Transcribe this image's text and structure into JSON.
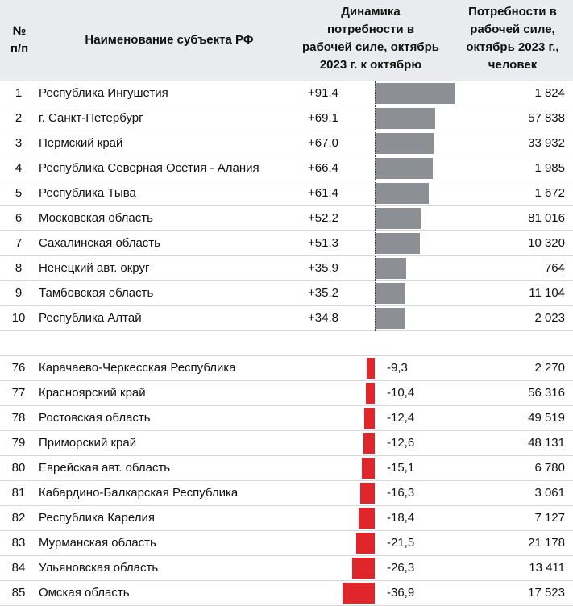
{
  "header": {
    "col_num": [
      "№",
      "п/п"
    ],
    "col_name": "Наименование субъекта РФ",
    "col_dynamics": [
      "Динамика",
      "потребности в",
      "рабочей силе, октябрь",
      "2023 г. к октябрю"
    ],
    "col_need": [
      "Потребности в",
      "рабочей силе,",
      "октябрь 2023 г.,",
      "человек"
    ]
  },
  "colors": {
    "positive_bar": "#8c8f93",
    "negative_bar": "#e0262b",
    "header_bg": "#e9ebef"
  },
  "chart_data": {
    "type": "bar",
    "orientation": "horizontal",
    "top": [
      {
        "rank": "1",
        "name": "Республика Ингушетия",
        "label": "+91.4",
        "value": 91.4,
        "need": "1 824"
      },
      {
        "rank": "2",
        "name": "г. Санкт-Петербург",
        "label": "+69.1",
        "value": 69.1,
        "need": "57 838"
      },
      {
        "rank": "3",
        "name": "Пермский край",
        "label": "+67.0",
        "value": 67.0,
        "need": "33 932"
      },
      {
        "rank": "4",
        "name": "Республика Северная Осетия - Алания",
        "label": "+66.4",
        "value": 66.4,
        "need": "1 985"
      },
      {
        "rank": "5",
        "name": "Республика Тыва",
        "label": "+61.4",
        "value": 61.4,
        "need": "1 672"
      },
      {
        "rank": "6",
        "name": "Московская область",
        "label": "+52.2",
        "value": 52.2,
        "need": "81 016"
      },
      {
        "rank": "7",
        "name": "Сахалинская область",
        "label": "+51.3",
        "value": 51.3,
        "need": "10 320"
      },
      {
        "rank": "8",
        "name": "Ненецкий авт. округ",
        "label": "+35.9",
        "value": 35.9,
        "need": "764"
      },
      {
        "rank": "9",
        "name": "Тамбовская область",
        "label": "+35.2",
        "value": 35.2,
        "need": "11 104"
      },
      {
        "rank": "10",
        "name": "Республика Алтай",
        "label": "+34.8",
        "value": 34.8,
        "need": "2 023"
      }
    ],
    "bottom": [
      {
        "rank": "76",
        "name": "Карачаево-Черкесская Республика",
        "label": "-9,3",
        "value": -9.3,
        "need": "2 270"
      },
      {
        "rank": "77",
        "name": "Красноярский край",
        "label": "-10,4",
        "value": -10.4,
        "need": "56 316"
      },
      {
        "rank": "78",
        "name": "Ростовская область",
        "label": "-12,4",
        "value": -12.4,
        "need": "49 519"
      },
      {
        "rank": "79",
        "name": "Приморский край",
        "label": "-12,6",
        "value": -12.6,
        "need": "48 131"
      },
      {
        "rank": "80",
        "name": "Еврейская авт. область",
        "label": "-15,1",
        "value": -15.1,
        "need": "6 780"
      },
      {
        "rank": "81",
        "name": "Кабардино-Балкарская Республика",
        "label": "-16,3",
        "value": -16.3,
        "need": "3 061"
      },
      {
        "rank": "82",
        "name": "Республика Карелия",
        "label": "-18,4",
        "value": -18.4,
        "need": "7 127"
      },
      {
        "rank": "83",
        "name": "Мурманская область",
        "label": "-21,5",
        "value": -21.5,
        "need": "21 178"
      },
      {
        "rank": "84",
        "name": "Ульяновская область",
        "label": "-26,3",
        "value": -26.3,
        "need": "13 411"
      },
      {
        "rank": "85",
        "name": "Омская область",
        "label": "-36,9",
        "value": -36.9,
        "need": "17 523"
      }
    ]
  }
}
